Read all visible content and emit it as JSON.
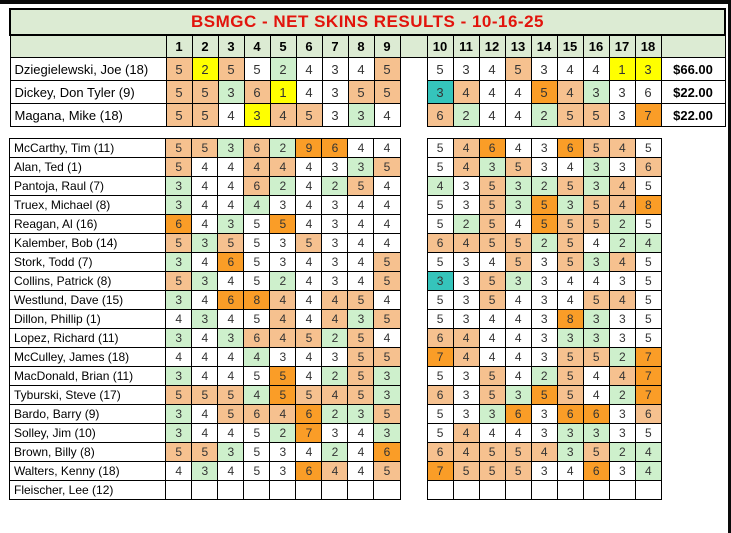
{
  "title": "BSMGC - NET SKINS RESULTS - 10-16-25",
  "holes_front": [
    "1",
    "2",
    "3",
    "4",
    "5",
    "6",
    "7",
    "8",
    "9"
  ],
  "holes_back": [
    "10",
    "11",
    "12",
    "13",
    "14",
    "15",
    "16",
    "17",
    "18"
  ],
  "colors": {
    "title_text": "#E2140C",
    "header_bg": "#DCEBD3",
    "score_text": "#333333",
    "border": "#000000"
  },
  "color_map": {
    "w": "#FFFFFF",
    "o": "#F6C18F",
    "d": "#FA9D27",
    "y": "#FFFF00",
    "g": "#CEF0CC",
    "t": "#35C4BB"
  },
  "color_names": {
    "w": "none",
    "o": "light-orange",
    "d": "dark-orange",
    "y": "yellow-skin-winner",
    "g": "light-green",
    "t": "teal"
  },
  "winners": [
    {
      "name": "Dziegielewski, Joe (18)",
      "front": [
        "5o",
        "2y",
        "5o",
        "5w",
        "2g",
        "4w",
        "3w",
        "4w",
        "5o"
      ],
      "back": [
        "5w",
        "3w",
        "4w",
        "5o",
        "3w",
        "4w",
        "4w",
        "1y",
        "3y"
      ],
      "payout": "$66.00"
    },
    {
      "name": "Dickey, Don Tyler (9)",
      "front": [
        "5o",
        "5o",
        "3g",
        "6o",
        "1y",
        "4w",
        "3w",
        "5o",
        "5o"
      ],
      "back": [
        "3t",
        "4o",
        "4w",
        "4w",
        "5d",
        "4o",
        "3g",
        "3w",
        "6w"
      ],
      "payout": "$22.00"
    },
    {
      "name": "Magana, Mike (18)",
      "front": [
        "5o",
        "5o",
        "4w",
        "3y",
        "4o",
        "5o",
        "3w",
        "3g",
        "4w"
      ],
      "back": [
        "6o",
        "2g",
        "4w",
        "4w",
        "2g",
        "5o",
        "5o",
        "3w",
        "7d"
      ],
      "payout": "$22.00"
    }
  ],
  "players": [
    {
      "name": "McCarthy, Tim (11)",
      "front": [
        "5o",
        "5o",
        "3g",
        "6o",
        "2g",
        "9d",
        "6d",
        "4w",
        "4w"
      ],
      "back": [
        "5w",
        "4o",
        "6d",
        "4w",
        "3w",
        "6d",
        "5o",
        "4o",
        "5w"
      ]
    },
    {
      "name": "Alan, Ted (1)",
      "front": [
        "5o",
        "4w",
        "4w",
        "4o",
        "4o",
        "4w",
        "3w",
        "3g",
        "5o"
      ],
      "back": [
        "5w",
        "4o",
        "3g",
        "5o",
        "3w",
        "4w",
        "3g",
        "3w",
        "6o"
      ]
    },
    {
      "name": "Pantoja, Raul (7)",
      "front": [
        "3g",
        "4w",
        "4w",
        "6o",
        "2g",
        "4w",
        "2g",
        "5o",
        "4w"
      ],
      "back": [
        "4g",
        "3w",
        "5o",
        "3g",
        "2g",
        "5o",
        "3g",
        "4o",
        "5w"
      ]
    },
    {
      "name": "Truex, Michael (8)",
      "front": [
        "3g",
        "4w",
        "4w",
        "4g",
        "3w",
        "4w",
        "3w",
        "4w",
        "4w"
      ],
      "back": [
        "5w",
        "3w",
        "5o",
        "3g",
        "5d",
        "3g",
        "5o",
        "4o",
        "8d"
      ]
    },
    {
      "name": "Reagan, Al (16)",
      "front": [
        "6d",
        "4w",
        "3g",
        "5w",
        "5d",
        "4w",
        "3w",
        "4w",
        "4w"
      ],
      "back": [
        "5w",
        "2g",
        "5o",
        "4w",
        "5d",
        "5o",
        "5o",
        "2g",
        "5w"
      ]
    },
    {
      "name": "Kalember, Bob (14)",
      "front": [
        "5o",
        "3g",
        "5o",
        "5w",
        "3w",
        "5o",
        "3w",
        "4w",
        "4w"
      ],
      "back": [
        "6o",
        "4o",
        "5o",
        "5o",
        "2g",
        "5o",
        "4w",
        "2g",
        "4g"
      ]
    },
    {
      "name": "Stork, Todd (7)",
      "front": [
        "3g",
        "4w",
        "6d",
        "5w",
        "3w",
        "4w",
        "3w",
        "4w",
        "5o"
      ],
      "back": [
        "5w",
        "3w",
        "4w",
        "5o",
        "3w",
        "5o",
        "3g",
        "4o",
        "5w"
      ]
    },
    {
      "name": "Collins, Patrick (8)",
      "front": [
        "5o",
        "3g",
        "4w",
        "5w",
        "2g",
        "4w",
        "3w",
        "4w",
        "5o"
      ],
      "back": [
        "3t",
        "3w",
        "5o",
        "3g",
        "3w",
        "4w",
        "4w",
        "3w",
        "5w"
      ]
    },
    {
      "name": "Westlund, Dave (15)",
      "front": [
        "3g",
        "4w",
        "6d",
        "8d",
        "4o",
        "4w",
        "4o",
        "5o",
        "4w"
      ],
      "back": [
        "5w",
        "3w",
        "5o",
        "4w",
        "3w",
        "4w",
        "5o",
        "4o",
        "5w"
      ]
    },
    {
      "name": "Dillon, Phillip (1)",
      "front": [
        "4w",
        "3g",
        "4w",
        "5w",
        "4o",
        "4w",
        "4o",
        "3g",
        "5o"
      ],
      "back": [
        "5w",
        "3w",
        "4w",
        "4w",
        "3w",
        "8d",
        "3g",
        "3w",
        "5w"
      ]
    },
    {
      "name": "Lopez, Richard (11)",
      "front": [
        "3g",
        "4w",
        "3g",
        "6o",
        "4o",
        "5o",
        "2g",
        "5o",
        "4w"
      ],
      "back": [
        "6o",
        "4o",
        "4w",
        "4w",
        "3w",
        "3g",
        "3g",
        "3w",
        "5w"
      ]
    },
    {
      "name": "McCulley, James (18)",
      "front": [
        "4w",
        "4w",
        "4w",
        "4g",
        "3w",
        "4w",
        "3w",
        "5o",
        "5o"
      ],
      "back": [
        "7d",
        "4o",
        "4w",
        "4w",
        "3w",
        "5o",
        "5o",
        "2g",
        "7d"
      ]
    },
    {
      "name": "MacDonald, Brian (11)",
      "front": [
        "3g",
        "4w",
        "4w",
        "5w",
        "5d",
        "4w",
        "2g",
        "5o",
        "3g"
      ],
      "back": [
        "5w",
        "3w",
        "5o",
        "4w",
        "2g",
        "5o",
        "4w",
        "4o",
        "7d"
      ]
    },
    {
      "name": "Tyburski, Steve (17)",
      "front": [
        "5o",
        "5o",
        "5o",
        "4g",
        "5d",
        "5o",
        "4o",
        "5o",
        "3g"
      ],
      "back": [
        "6o",
        "3w",
        "5o",
        "3g",
        "5d",
        "5o",
        "4w",
        "2g",
        "7d"
      ]
    },
    {
      "name": "Bardo, Barry (9)",
      "front": [
        "3g",
        "4w",
        "5o",
        "6o",
        "4o",
        "6d",
        "2g",
        "3g",
        "5o"
      ],
      "back": [
        "5w",
        "3w",
        "3g",
        "6d",
        "3w",
        "6d",
        "6d",
        "3w",
        "6o"
      ]
    },
    {
      "name": "Solley, Jim (10)",
      "front": [
        "3g",
        "4w",
        "4w",
        "5w",
        "2g",
        "7d",
        "3w",
        "4w",
        "3g"
      ],
      "back": [
        "5w",
        "4o",
        "4w",
        "4w",
        "3w",
        "3g",
        "3g",
        "3w",
        "5w"
      ]
    },
    {
      "name": "Brown, Billy (8)",
      "front": [
        "5o",
        "5o",
        "3g",
        "5w",
        "3w",
        "4w",
        "2g",
        "4w",
        "6d"
      ],
      "back": [
        "6o",
        "4o",
        "5o",
        "5o",
        "4o",
        "3g",
        "5o",
        "2g",
        "4g"
      ]
    },
    {
      "name": "Walters, Kenny (18)",
      "front": [
        "4w",
        "3g",
        "4w",
        "5w",
        "3w",
        "6d",
        "4o",
        "4w",
        "5o"
      ],
      "back": [
        "7d",
        "5o",
        "5o",
        "5o",
        "3w",
        "4w",
        "6d",
        "3w",
        "4g"
      ]
    },
    {
      "name": "Fleischer, Lee (12)",
      "front": [
        "",
        "",
        "",
        "",
        "",
        "",
        "",
        "",
        ""
      ],
      "back": [
        "",
        "",
        "",
        "",
        "",
        "",
        "",
        "",
        ""
      ]
    }
  ]
}
